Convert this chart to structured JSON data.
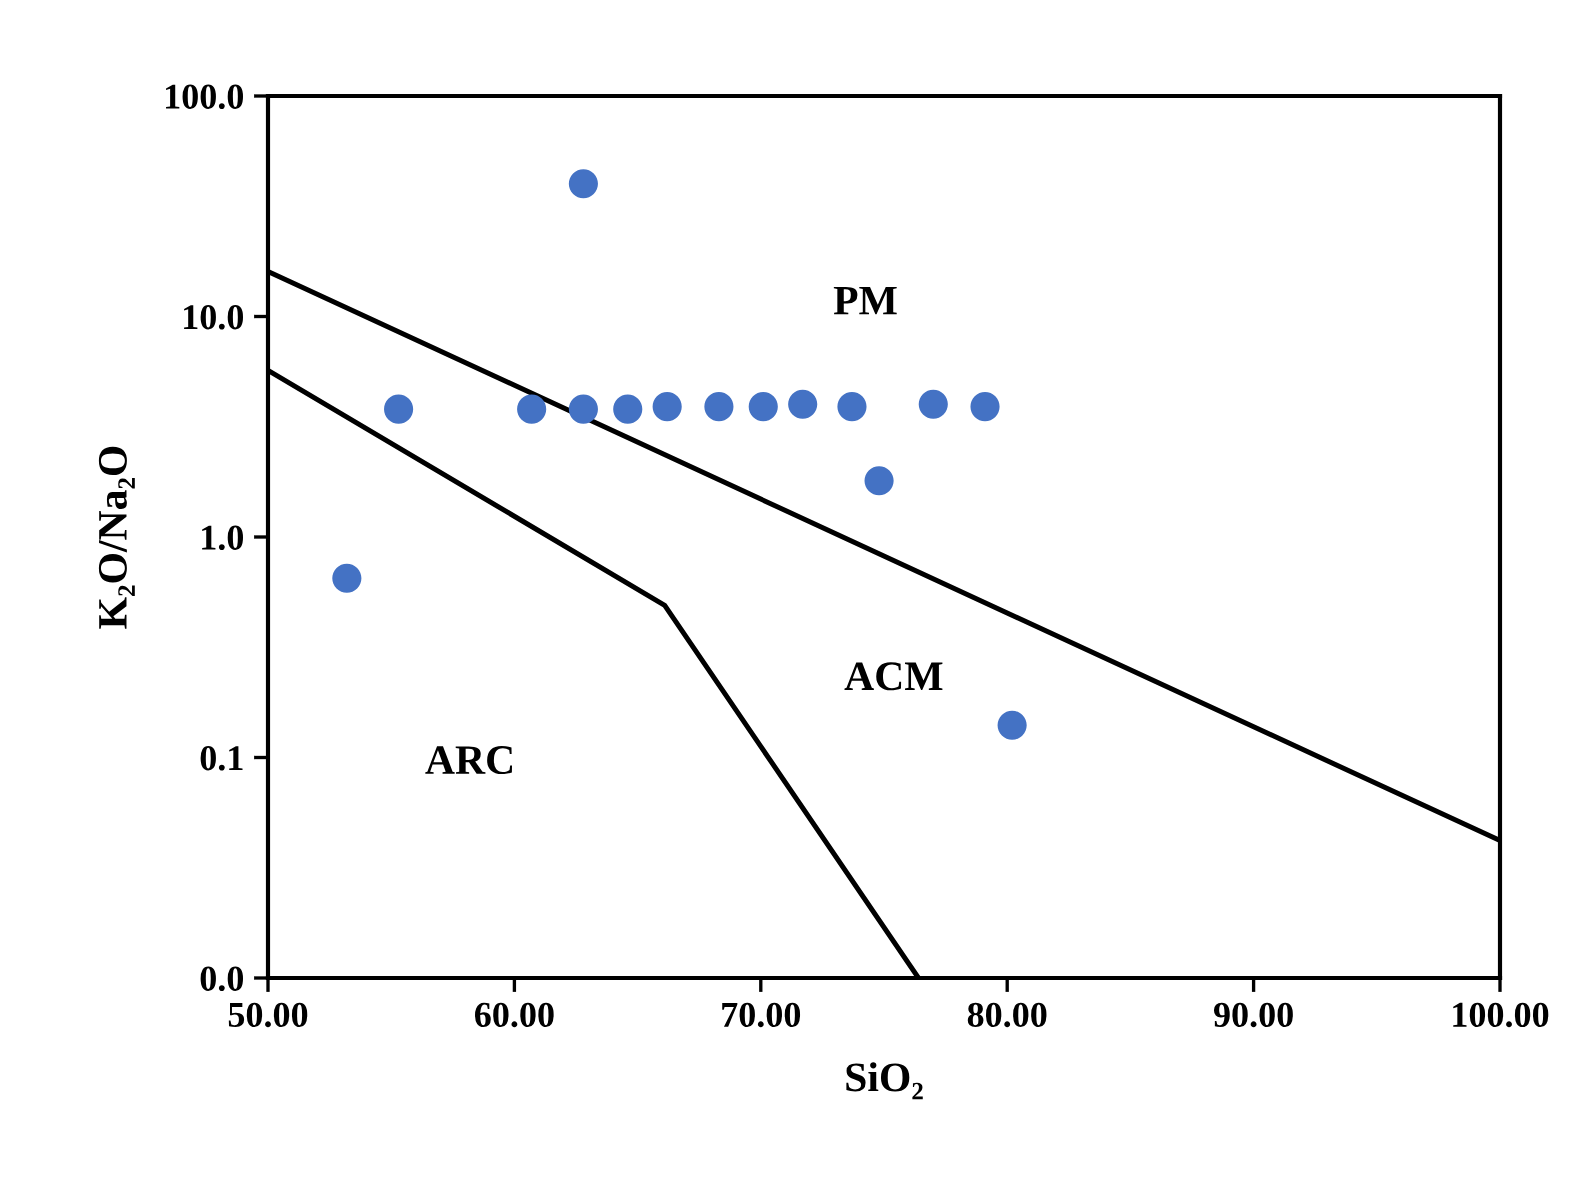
{
  "chart_data": {
    "type": "scatter",
    "xlabel": "SiO₂",
    "ylabel": "K₂O/Na₂O",
    "log": "y",
    "xlim": [
      50,
      100
    ],
    "xticks": [
      {
        "value": 50,
        "label": "50.00"
      },
      {
        "value": 60,
        "label": "60.00"
      },
      {
        "value": 70,
        "label": "70.00"
      },
      {
        "value": 80,
        "label": "80.00"
      },
      {
        "value": 90,
        "label": "90.00"
      },
      {
        "value": 100,
        "label": "100.00"
      }
    ],
    "ylim": [
      0.01,
      100
    ],
    "yticks": [
      {
        "value": 0.01,
        "label": "0.0"
      },
      {
        "value": 0.1,
        "label": "0.1"
      },
      {
        "value": 1,
        "label": "1.0"
      },
      {
        "value": 10,
        "label": "10.0"
      },
      {
        "value": 100,
        "label": "100.0"
      }
    ],
    "grid": false,
    "series": [
      {
        "color": "#4472c4",
        "marker": "circle",
        "x": [
          53.2,
          55.3,
          60.7,
          62.8,
          62.8,
          64.6,
          66.2,
          68.3,
          70.1,
          71.7,
          73.7,
          74.8,
          77.0,
          79.1,
          80.2
        ],
        "values": [
          0.65,
          3.8,
          3.8,
          40,
          3.8,
          3.8,
          3.9,
          3.9,
          3.9,
          4.0,
          3.9,
          1.8,
          4.0,
          3.9,
          0.14
        ]
      },
      {
        "type": "line",
        "color": "#000000",
        "marker": "none",
        "line_style": "solid",
        "x": [
          50,
          100
        ],
        "values": [
          16,
          0.042
        ]
      },
      {
        "type": "line",
        "color": "#000000",
        "marker": "none",
        "line_style": "solid",
        "x": [
          50,
          66.1,
          76.4
        ],
        "values": [
          5.7,
          0.49,
          0.01
        ]
      }
    ],
    "annotations": [
      "PM",
      "ACM",
      "ARC"
    ]
  }
}
